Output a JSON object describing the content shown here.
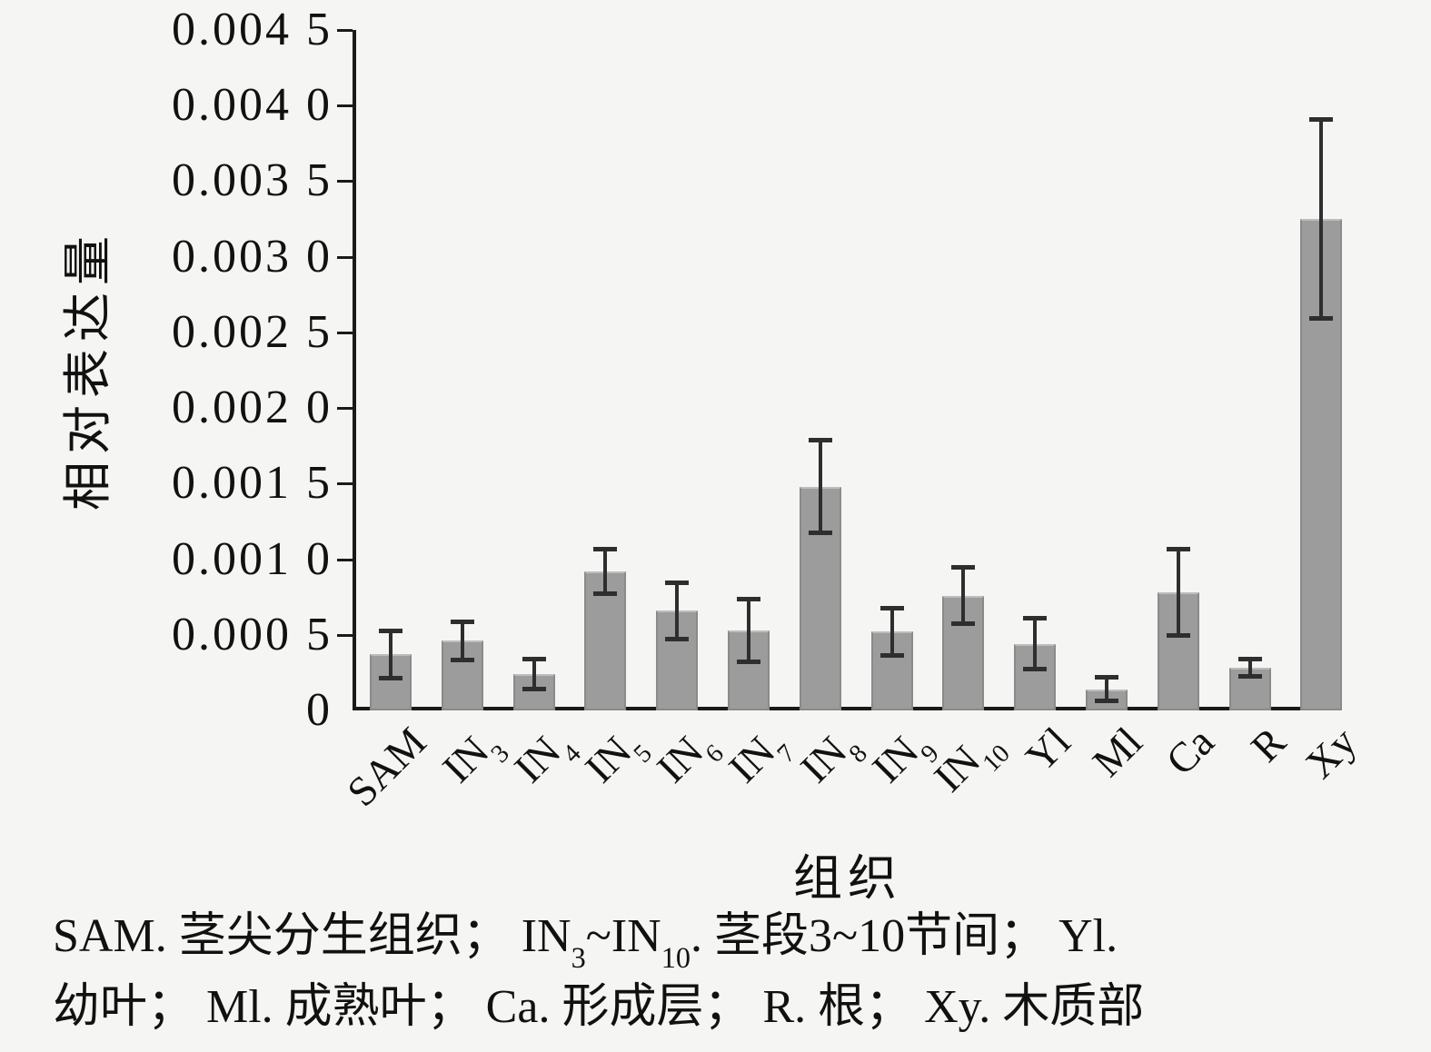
{
  "chart_data": {
    "type": "bar",
    "title": "",
    "xlabel": "组织",
    "ylabel": "相对表达量",
    "ylim": [
      0,
      0.0045
    ],
    "grid": false,
    "legend": "none",
    "bar_color": "#9c9c9c",
    "error_bar_color": "#2e2e2e",
    "yticks": [
      {
        "label": "0.004 5",
        "value": 0.0045
      },
      {
        "label": "0.004 0",
        "value": 0.004
      },
      {
        "label": "0.003 5",
        "value": 0.0035
      },
      {
        "label": "0.003 0",
        "value": 0.003
      },
      {
        "label": "0.002 5",
        "value": 0.0025
      },
      {
        "label": "0.002 0",
        "value": 0.002
      },
      {
        "label": "0.001 5",
        "value": 0.0015
      },
      {
        "label": "0.001 0",
        "value": 0.001
      },
      {
        "label": "0.000 5",
        "value": 0.0005
      },
      {
        "label": "0",
        "value": 0
      }
    ],
    "categories": [
      {
        "main": "SAM",
        "sub": ""
      },
      {
        "main": "IN",
        "sub": "3"
      },
      {
        "main": "IN",
        "sub": "4"
      },
      {
        "main": "IN",
        "sub": "5"
      },
      {
        "main": "IN",
        "sub": "6"
      },
      {
        "main": "IN",
        "sub": "7"
      },
      {
        "main": "IN",
        "sub": "8"
      },
      {
        "main": "IN",
        "sub": "9"
      },
      {
        "main": "IN",
        "sub": "10"
      },
      {
        "main": "Yl",
        "sub": ""
      },
      {
        "main": "Ml",
        "sub": ""
      },
      {
        "main": "Ca",
        "sub": ""
      },
      {
        "main": "R",
        "sub": ""
      },
      {
        "main": "Xy",
        "sub": ""
      }
    ],
    "values": [
      0.00037,
      0.00046,
      0.00024,
      0.00092,
      0.00066,
      0.00053,
      0.00148,
      0.00052,
      0.00076,
      0.00044,
      0.00014,
      0.00078,
      0.00028,
      0.00325
    ],
    "errors": [
      0.00016,
      0.00013,
      0.0001,
      0.00015,
      0.00019,
      0.00021,
      0.00031,
      0.00016,
      0.00019,
      0.00017,
      8e-05,
      0.00029,
      6e-05,
      0.00066
    ]
  },
  "caption": {
    "line1_segments": [
      {
        "t": "SAM. 茎尖分生组织； "
      },
      {
        "t": "IN"
      },
      {
        "s": "3"
      },
      {
        "t": "~IN"
      },
      {
        "s": "10"
      },
      {
        "t": ". 茎段3~10节间； Yl."
      }
    ],
    "line2": "幼叶； Ml. 成熟叶； Ca. 形成层； R. 根； Xy. 木质部"
  }
}
